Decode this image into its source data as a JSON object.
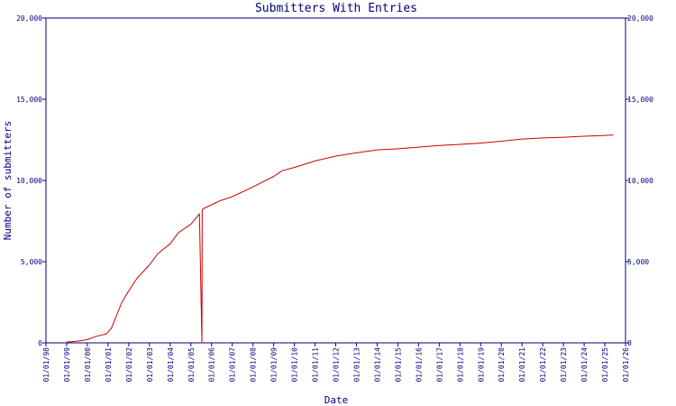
{
  "chart_data": {
    "type": "line",
    "title": "Submitters With Entries",
    "xlabel": "Date",
    "ylabel": "Number of submitters",
    "xlim": [
      "1998-01-01",
      "2026-01-01"
    ],
    "ylim": [
      0,
      20000
    ],
    "grid": false,
    "x_ticks": [
      "01/01/98",
      "01/01/99",
      "01/01/00",
      "01/01/01",
      "01/01/02",
      "01/01/03",
      "01/01/04",
      "01/01/05",
      "01/01/06",
      "01/01/07",
      "01/01/08",
      "01/01/09",
      "01/01/10",
      "01/01/11",
      "01/01/12",
      "01/01/13",
      "01/01/14",
      "01/01/15",
      "01/01/16",
      "01/01/17",
      "01/01/18",
      "01/01/19",
      "01/01/20",
      "01/01/21",
      "01/01/22",
      "01/01/23",
      "01/01/24",
      "01/01/25",
      "01/01/26"
    ],
    "y_ticks": [
      "0",
      "5,000",
      "10,000",
      "15,000",
      "20,000"
    ],
    "y_tick_values": [
      0,
      5000,
      10000,
      15000,
      20000
    ],
    "series": [
      {
        "color": "#cc0000",
        "x": [
          "1999-01-01",
          "1999-07-01",
          "2000-01-01",
          "2000-06-01",
          "2000-12-01",
          "2001-03-01",
          "2001-06-01",
          "2001-09-01",
          "2002-01-01",
          "2002-06-01",
          "2003-01-01",
          "2003-06-01",
          "2004-01-01",
          "2004-06-01",
          "2005-01-01",
          "2005-05-01",
          "2005-06-01",
          "2005-07-15",
          "2005-07-20",
          "2005-08-01",
          "2006-01-01",
          "2006-06-01",
          "2007-01-01",
          "2008-01-01",
          "2009-01-01",
          "2009-06-01",
          "2010-01-01",
          "2011-01-01",
          "2012-01-01",
          "2013-01-01",
          "2014-01-01",
          "2015-01-01",
          "2016-01-01",
          "2017-01-01",
          "2018-01-01",
          "2019-01-01",
          "2020-01-01",
          "2021-01-01",
          "2022-01-01",
          "2023-01-01",
          "2024-01-01",
          "2025-01-01",
          "2025-06-01"
        ],
        "y": [
          50,
          100,
          200,
          400,
          550,
          900,
          1700,
          2500,
          3200,
          4000,
          4800,
          5500,
          6100,
          6800,
          7300,
          7800,
          7950,
          0,
          8150,
          8250,
          8500,
          8750,
          9000,
          9600,
          10250,
          10600,
          10800,
          11200,
          11500,
          11700,
          11880,
          11950,
          12050,
          12150,
          12220,
          12300,
          12420,
          12550,
          12620,
          12660,
          12720,
          12770,
          12800
        ]
      }
    ]
  },
  "colors": {
    "axis": "#000080",
    "text": "#000080",
    "line": "#cc0000",
    "background": "#ffffff"
  }
}
